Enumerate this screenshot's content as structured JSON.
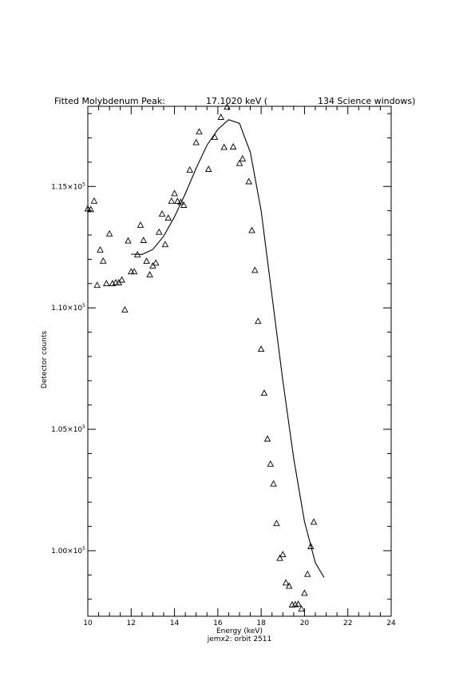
{
  "chart_data": {
    "type": "scatter",
    "title_parts": {
      "label": "Fitted Molybdenum Peak:",
      "energy": "17.1020 keV (",
      "count": "134 Science windows)"
    },
    "xlabel": "Energy (keV)",
    "ylabel": "Detector counts",
    "subtitle": "jemx2: orbit 2511",
    "xlim": [
      10,
      24
    ],
    "ylim": [
      97300,
      118300
    ],
    "x_ticks": [
      {
        "value": 10,
        "label": "10"
      },
      {
        "value": 12,
        "label": "12"
      },
      {
        "value": 14,
        "label": "14"
      },
      {
        "value": 16,
        "label": "16"
      },
      {
        "value": 18,
        "label": "18"
      },
      {
        "value": 20,
        "label": "20"
      },
      {
        "value": 22,
        "label": "22"
      },
      {
        "value": 24,
        "label": "24"
      }
    ],
    "x_minor_step": 0.5,
    "y_ticks": [
      {
        "value": 100000,
        "mantissa": "1.00×10",
        "exponent": "5"
      },
      {
        "value": 105000,
        "mantissa": "1.05×10",
        "exponent": "5"
      },
      {
        "value": 110000,
        "mantissa": "1.10×10",
        "exponent": "5"
      },
      {
        "value": 115000,
        "mantissa": "1.15×10",
        "exponent": "5"
      }
    ],
    "y_minor_step": 1000,
    "series": [
      {
        "marker": "triangle",
        "points": [
          [
            10.0,
            114070
          ],
          [
            10.14,
            114040
          ],
          [
            10.29,
            114390
          ],
          [
            10.43,
            110920
          ],
          [
            10.57,
            112380
          ],
          [
            10.71,
            111920
          ],
          [
            10.86,
            110990
          ],
          [
            11.0,
            113040
          ],
          [
            11.14,
            110990
          ],
          [
            11.29,
            111030
          ],
          [
            11.43,
            111030
          ],
          [
            11.57,
            111140
          ],
          [
            11.71,
            109910
          ],
          [
            11.86,
            112750
          ],
          [
            12.0,
            111480
          ],
          [
            12.14,
            111480
          ],
          [
            12.29,
            112180
          ],
          [
            12.43,
            113400
          ],
          [
            12.57,
            112770
          ],
          [
            12.71,
            111910
          ],
          [
            12.86,
            111350
          ],
          [
            13.0,
            111720
          ],
          [
            13.14,
            111840
          ],
          [
            13.29,
            113110
          ],
          [
            13.43,
            113860
          ],
          [
            13.57,
            112600
          ],
          [
            13.71,
            113690
          ],
          [
            13.86,
            114390
          ],
          [
            14.0,
            114700
          ],
          [
            14.14,
            114380
          ],
          [
            14.29,
            114340
          ],
          [
            14.43,
            114220
          ],
          [
            14.71,
            115670
          ],
          [
            15.0,
            116800
          ],
          [
            15.14,
            117240
          ],
          [
            15.57,
            115700
          ],
          [
            15.86,
            117020
          ],
          [
            16.14,
            117840
          ],
          [
            16.29,
            116600
          ],
          [
            16.43,
            118260
          ],
          [
            16.71,
            116620
          ],
          [
            17.0,
            115940
          ],
          [
            17.14,
            116130
          ],
          [
            17.43,
            115190
          ],
          [
            17.57,
            113180
          ],
          [
            17.71,
            111540
          ],
          [
            17.86,
            109440
          ],
          [
            18.0,
            108290
          ],
          [
            18.14,
            106480
          ],
          [
            18.29,
            104590
          ],
          [
            18.43,
            103560
          ],
          [
            18.57,
            102740
          ],
          [
            18.71,
            101110
          ],
          [
            18.86,
            99680
          ],
          [
            19.0,
            99830
          ],
          [
            19.14,
            98670
          ],
          [
            19.29,
            98530
          ],
          [
            19.43,
            97760
          ],
          [
            19.57,
            97770
          ],
          [
            19.71,
            97790
          ],
          [
            19.86,
            97590
          ],
          [
            20.0,
            98240
          ],
          [
            20.14,
            99020
          ],
          [
            20.29,
            100160
          ],
          [
            20.43,
            101170
          ]
        ]
      }
    ],
    "fit_curve": [
      [
        12.0,
        112210
      ],
      [
        12.5,
        112200
      ],
      [
        13.0,
        112400
      ],
      [
        13.5,
        112950
      ],
      [
        14.0,
        113750
      ],
      [
        14.5,
        114700
      ],
      [
        15.0,
        115750
      ],
      [
        15.5,
        116700
      ],
      [
        16.0,
        117350
      ],
      [
        16.5,
        117750
      ],
      [
        17.0,
        117600
      ],
      [
        17.5,
        116400
      ],
      [
        18.0,
        114000
      ],
      [
        18.5,
        110500
      ],
      [
        19.0,
        107000
      ],
      [
        19.5,
        103800
      ],
      [
        20.0,
        101200
      ],
      [
        20.5,
        99500
      ],
      [
        20.9,
        98900
      ]
    ]
  }
}
